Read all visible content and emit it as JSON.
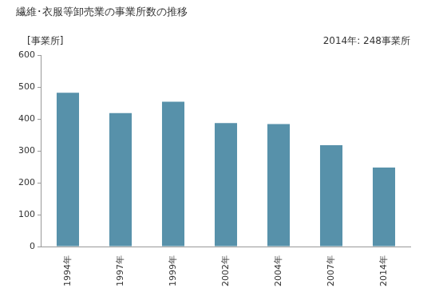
{
  "chart_data": {
    "type": "bar",
    "title": "繊維･衣服等卸売業の事業所数の推移",
    "ylabel": "[事業所]",
    "annotations": [
      "2014年: 248事業所"
    ],
    "categories": [
      "1994年",
      "1997年",
      "1999年",
      "2002年",
      "2004年",
      "2007年",
      "2014年"
    ],
    "values": [
      483,
      419,
      455,
      388,
      385,
      318,
      248
    ],
    "color": "#5791aa",
    "ylim": [
      0,
      600
    ],
    "yticks": [
      0,
      100,
      200,
      300,
      400,
      500,
      600
    ],
    "grid": false
  }
}
